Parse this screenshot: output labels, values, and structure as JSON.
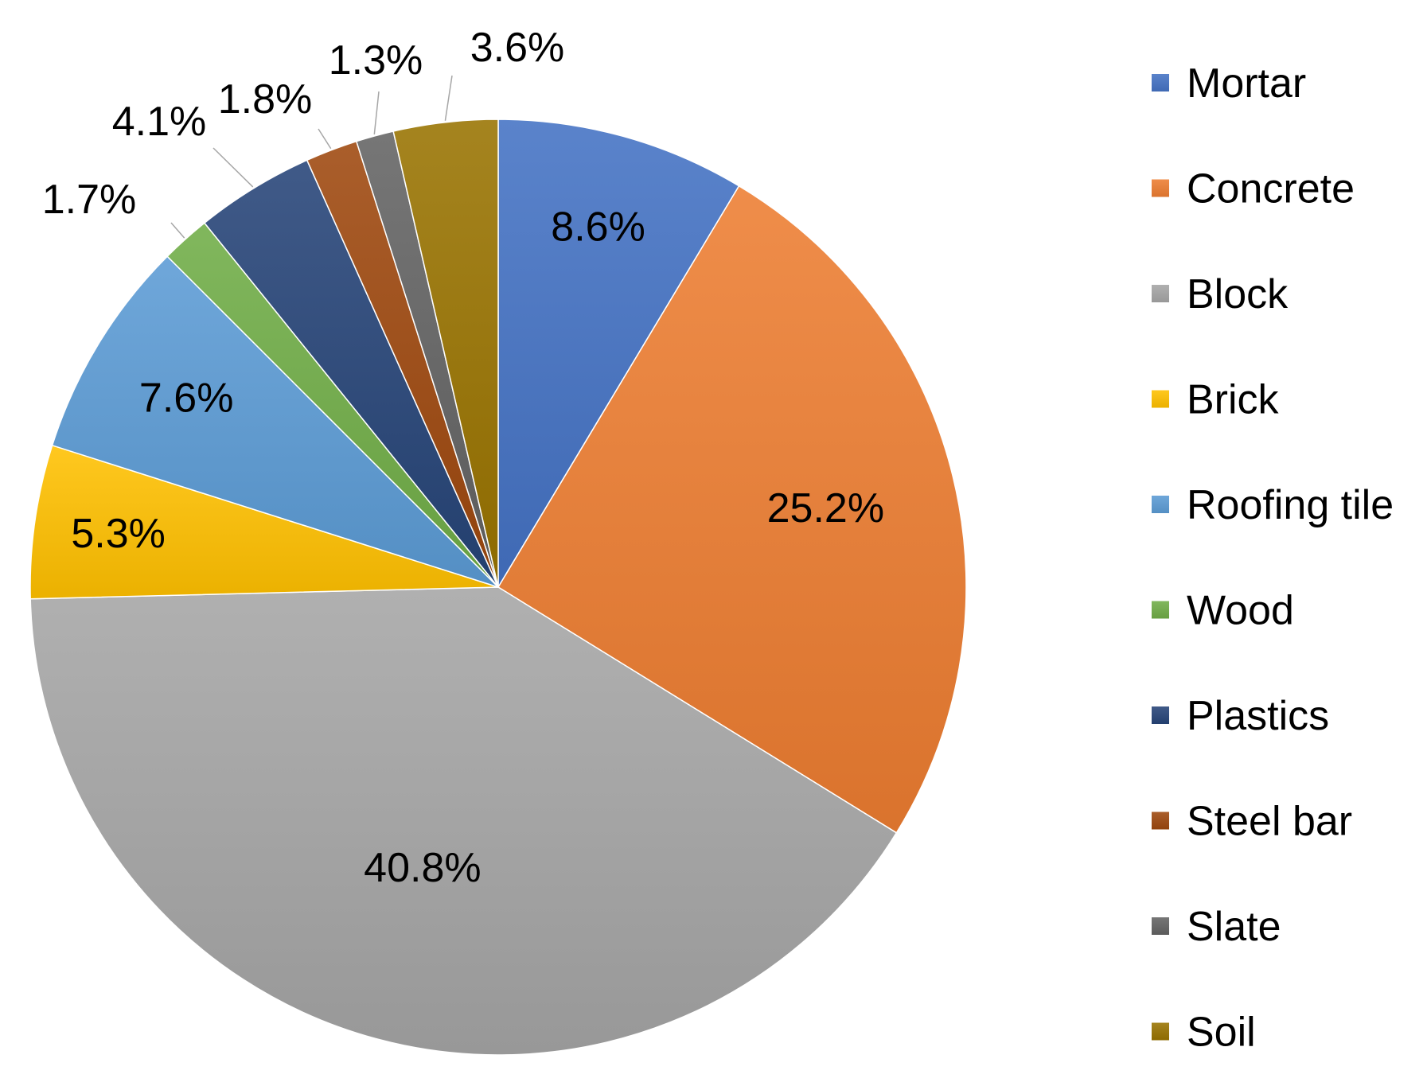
{
  "chart_data": {
    "type": "pie",
    "categories": [
      "Mortar",
      "Concrete",
      "Block",
      "Brick",
      "Roofing tile",
      "Wood",
      "Plastics",
      "Steel bar",
      "Slate",
      "Soil"
    ],
    "values": [
      8.6,
      25.2,
      40.8,
      5.3,
      7.6,
      1.7,
      4.1,
      1.8,
      1.3,
      3.6
    ],
    "labels": [
      "8.6%",
      "25.2%",
      "40.8%",
      "5.3%",
      "7.6%",
      "1.7%",
      "4.1%",
      "1.8%",
      "1.3%",
      "3.6%"
    ],
    "colors": [
      "#4472C4",
      "#ED7D31",
      "#A5A5A5",
      "#FFC000",
      "#5B9BD5",
      "#70AD47",
      "#264478",
      "#9E480E",
      "#636363",
      "#997300"
    ],
    "start_angle": "12 o'clock",
    "direction": "clockwise",
    "legend_position": "right"
  }
}
